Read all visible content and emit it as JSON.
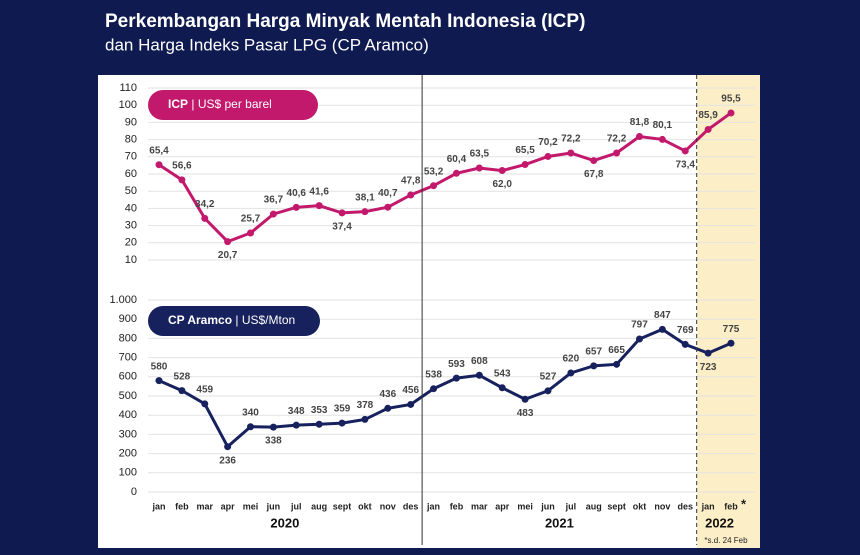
{
  "title": "Perkembangan Harga Minyak Mentah Indonesia (ICP)",
  "subtitle": "dan Harga Indeks Pasar LPG (CP Aramco)",
  "footnote_mark": "*",
  "footnote": "*s.d. 24 Feb",
  "chart_data": [
    {
      "type": "line",
      "name": "ICP",
      "unit_label": "US$ per barel",
      "color": "#c2196c",
      "values": [
        65.4,
        56.6,
        34.2,
        20.7,
        25.7,
        36.7,
        40.6,
        41.6,
        37.4,
        38.1,
        40.7,
        47.8,
        53.2,
        60.4,
        63.5,
        62.0,
        65.5,
        70.2,
        72.2,
        67.8,
        72.2,
        81.8,
        80.1,
        73.4,
        85.9,
        95.5
      ],
      "value_labels": [
        "65,4",
        "56,6",
        "34,2",
        "20,7",
        "25,7",
        "36,7",
        "40,6",
        "41,6",
        "37,4",
        "38,1",
        "40,7",
        "47,8",
        "53,2",
        "60,4",
        "63,5",
        "62,0",
        "65,5",
        "70,2",
        "72,2",
        "67,8",
        "72,2",
        "81,8",
        "80,1",
        "73,4",
        "85,9",
        "95,5"
      ],
      "ylim": [
        10,
        110
      ],
      "yticks": [
        10,
        20,
        30,
        40,
        50,
        60,
        70,
        80,
        90,
        100,
        110
      ],
      "grid": true
    },
    {
      "type": "line",
      "name": "CP Aramco",
      "unit_label": "US$/Mton",
      "color": "#17215e",
      "categories": [
        "jan",
        "feb",
        "mar",
        "apr",
        "mei",
        "jun",
        "jul",
        "aug",
        "sept",
        "okt",
        "nov",
        "des",
        "jan",
        "feb",
        "mar",
        "apr",
        "mei",
        "jun",
        "jul",
        "aug",
        "sept",
        "okt",
        "nov",
        "des",
        "jan",
        "feb"
      ],
      "category_groups": [
        "2020",
        "2021",
        "2022"
      ],
      "values": [
        580,
        528,
        459,
        236,
        340,
        338,
        348,
        353,
        359,
        378,
        436,
        456,
        538,
        593,
        608,
        543,
        483,
        527,
        620,
        657,
        665,
        797,
        847,
        769,
        723,
        775
      ],
      "ylim": [
        0,
        1000
      ],
      "yticks": [
        0,
        100,
        200,
        300,
        400,
        500,
        600,
        700,
        800,
        900,
        {
          "value": 1000,
          "label": "1.000"
        }
      ],
      "grid": true
    }
  ]
}
